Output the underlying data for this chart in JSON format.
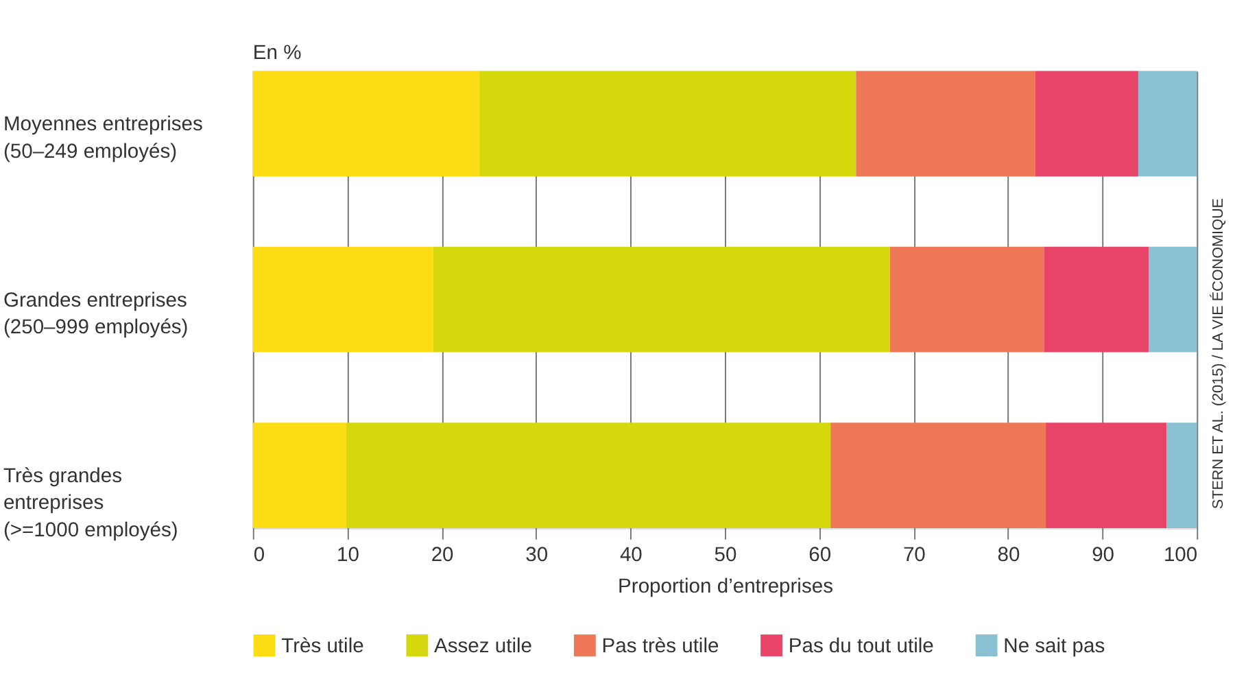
{
  "chart_data": {
    "type": "bar",
    "orientation": "horizontal",
    "stacked": true,
    "categories": [
      "Moyennes entreprises\n(50–249 employés)",
      "Grandes entreprises\n(250–999 employés)",
      "Très grandes\nentreprises\n(>=1000 employés)"
    ],
    "series": [
      {
        "name": "Très utile",
        "color": "#fcdc14",
        "values": [
          24.0,
          19.1,
          9.9
        ]
      },
      {
        "name": "Assez utile",
        "color": "#d4d80d",
        "values": [
          39.9,
          48.4,
          51.3
        ]
      },
      {
        "name": "Pas très utile",
        "color": "#ee7755",
        "values": [
          19.0,
          16.3,
          22.8
        ]
      },
      {
        "name": "Pas du tout utile",
        "color": "#e84468",
        "values": [
          10.9,
          11.1,
          12.8
        ]
      },
      {
        "name": "Ne sait pas",
        "color": "#89c0d2",
        "values": [
          6.2,
          5.1,
          3.2
        ]
      }
    ],
    "xlim": [
      0,
      100
    ],
    "xticks": [
      0,
      10,
      20,
      30,
      40,
      50,
      60,
      70,
      80,
      90,
      100
    ],
    "xlabel": "Proportion d’entreprises",
    "annotations": [
      "En %",
      "STERN ET AL. (2015) / LA VIE ÉCONOMIQUE"
    ],
    "grid": "x",
    "legend": "bottom"
  }
}
